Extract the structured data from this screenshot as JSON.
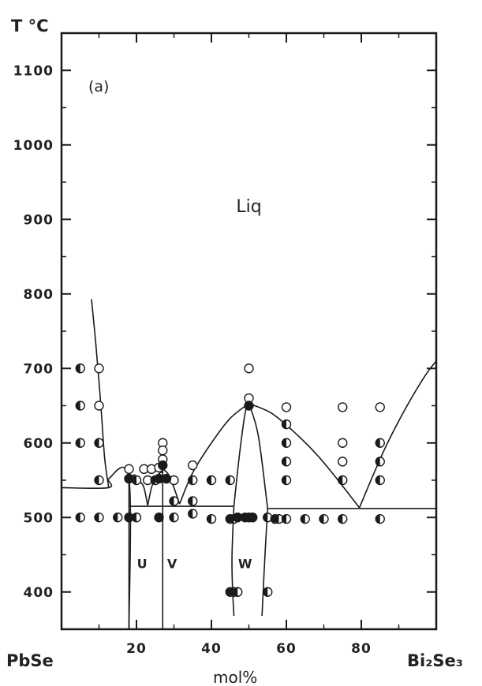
{
  "chart_data": {
    "type": "scatter",
    "title": "",
    "panel_label": "(a)",
    "ylabel": "T °C",
    "xlabel": "mol%",
    "x_end_labels": {
      "left": "PbSe",
      "right": "Bi₂Se₃"
    },
    "xlim": [
      0,
      100
    ],
    "ylim": [
      350,
      1150
    ],
    "x_ticks": [
      20,
      40,
      60,
      80
    ],
    "y_ticks": [
      400,
      500,
      600,
      700,
      800,
      900,
      1000,
      1100
    ],
    "region_labels": [
      {
        "text": "Liq",
        "x": 50,
        "y": 910
      },
      {
        "text": "U",
        "x": 21.5,
        "y": 432
      },
      {
        "text": "V",
        "x": 29.5,
        "y": 432
      },
      {
        "text": "W",
        "x": 49,
        "y": 432
      }
    ],
    "phase_boundaries": [
      {
        "name": "liquidus-pbse",
        "points": [
          [
            8,
            793
          ],
          [
            9.2,
            730
          ],
          [
            10.5,
            650
          ],
          [
            11.5,
            580
          ],
          [
            12.6,
            540
          ]
        ]
      },
      {
        "name": "pbse-solvus",
        "points": [
          [
            0,
            540
          ],
          [
            12.6,
            540
          ],
          [
            12.6,
            552
          ],
          [
            18,
            552
          ],
          [
            18,
            350
          ]
        ]
      },
      {
        "name": "u-line",
        "points": [
          [
            18,
            350
          ],
          [
            18,
            552
          ]
        ]
      },
      {
        "name": "liquidus-u",
        "points": [
          [
            18,
            552
          ],
          [
            19.5,
            557
          ],
          [
            21,
            548
          ],
          [
            22,
            540
          ],
          [
            23,
            516
          ]
        ]
      },
      {
        "name": "liquidus-u2",
        "points": [
          [
            23,
            516
          ],
          [
            24,
            540
          ],
          [
            25,
            552
          ],
          [
            26.3,
            560
          ],
          [
            27,
            560
          ]
        ]
      },
      {
        "name": "v-line",
        "points": [
          [
            27,
            350
          ],
          [
            27,
            565
          ]
        ]
      },
      {
        "name": "liquidus-v",
        "points": [
          [
            27,
            565
          ],
          [
            28.5,
            558
          ],
          [
            30,
            540
          ],
          [
            31.5,
            518
          ]
        ]
      },
      {
        "name": "liquidus-w",
        "points": [
          [
            31.5,
            518
          ],
          [
            35,
            560
          ],
          [
            40,
            600
          ],
          [
            45,
            633
          ],
          [
            50,
            653
          ]
        ]
      },
      {
        "name": "liquidus-bi",
        "points": [
          [
            50,
            653
          ],
          [
            56,
            640
          ],
          [
            62,
            615
          ],
          [
            68,
            585
          ],
          [
            73,
            555
          ],
          [
            79.5,
            513
          ]
        ]
      },
      {
        "name": "liquidus-bi2",
        "points": [
          [
            79.5,
            513
          ],
          [
            83,
            555
          ],
          [
            87,
            600
          ],
          [
            92,
            648
          ],
          [
            97,
            690
          ],
          [
            100,
            710
          ]
        ]
      },
      {
        "name": "eutectic-1",
        "points": [
          [
            18,
            515
          ],
          [
            46,
            515
          ]
        ]
      },
      {
        "name": "eutectic-2",
        "points": [
          [
            57,
            512
          ],
          [
            100,
            512
          ]
        ]
      },
      {
        "name": "w-left",
        "points": [
          [
            46,
            515
          ],
          [
            45.5,
            450
          ],
          [
            45.6,
            410
          ],
          [
            46,
            368
          ]
        ]
      },
      {
        "name": "w-right",
        "points": [
          [
            55,
            512
          ],
          [
            54.3,
            450
          ],
          [
            53.9,
            410
          ],
          [
            53.5,
            368
          ]
        ]
      },
      {
        "name": "w-dome-left",
        "points": [
          [
            46,
            515
          ],
          [
            47.5,
            585
          ],
          [
            49,
            640
          ],
          [
            50,
            653
          ]
        ]
      },
      {
        "name": "w-dome-right",
        "points": [
          [
            50,
            653
          ],
          [
            52.5,
            610
          ],
          [
            55,
            512
          ]
        ]
      },
      {
        "name": "w-dome-right2",
        "points": [
          [
            55,
            512
          ],
          [
            57,
            512
          ]
        ]
      }
    ],
    "series": [
      {
        "name": "",
        "marker": "open",
        "points": [
          [
            10,
            700
          ],
          [
            10,
            650
          ],
          [
            18,
            565
          ],
          [
            22,
            565
          ],
          [
            23,
            550
          ],
          [
            24,
            565
          ],
          [
            26,
            567
          ],
          [
            27,
            600
          ],
          [
            27,
            590
          ],
          [
            27,
            578
          ],
          [
            30,
            550
          ],
          [
            35,
            570
          ],
          [
            50,
            700
          ],
          [
            50,
            660
          ],
          [
            60,
            648
          ],
          [
            75,
            648
          ],
          [
            75,
            600
          ],
          [
            75,
            575
          ],
          [
            85,
            648
          ]
        ]
      },
      {
        "name": "",
        "marker": "half",
        "points": [
          [
            5,
            700
          ],
          [
            5,
            650
          ],
          [
            5,
            600
          ],
          [
            5,
            500
          ],
          [
            10,
            600
          ],
          [
            10,
            550
          ],
          [
            10,
            500
          ],
          [
            15,
            500
          ],
          [
            20,
            550
          ],
          [
            20,
            500
          ],
          [
            25,
            550
          ],
          [
            30,
            522
          ],
          [
            30,
            500
          ],
          [
            35,
            550
          ],
          [
            35,
            522
          ],
          [
            35,
            505
          ],
          [
            40,
            550
          ],
          [
            40,
            498
          ],
          [
            45,
            550
          ],
          [
            45,
            498
          ],
          [
            46,
            498
          ],
          [
            45,
            400
          ],
          [
            46,
            400
          ],
          [
            47,
            400
          ],
          [
            55,
            500
          ],
          [
            55,
            400
          ],
          [
            57,
            498
          ],
          [
            58,
            498
          ],
          [
            60,
            625
          ],
          [
            60,
            600
          ],
          [
            60,
            575
          ],
          [
            60,
            550
          ],
          [
            60,
            498
          ],
          [
            65,
            498
          ],
          [
            70,
            498
          ],
          [
            75,
            550
          ],
          [
            75,
            498
          ],
          [
            85,
            600
          ],
          [
            85,
            575
          ],
          [
            85,
            550
          ],
          [
            85,
            498
          ]
        ]
      },
      {
        "name": "",
        "marker": "filled",
        "points": [
          [
            18,
            552
          ],
          [
            18,
            500
          ],
          [
            26,
            552
          ],
          [
            26,
            500
          ],
          [
            27,
            570
          ],
          [
            28,
            552
          ],
          [
            49,
            500
          ],
          [
            50,
            650
          ],
          [
            50,
            500
          ],
          [
            51,
            500
          ],
          [
            47,
            500
          ]
        ]
      }
    ]
  }
}
